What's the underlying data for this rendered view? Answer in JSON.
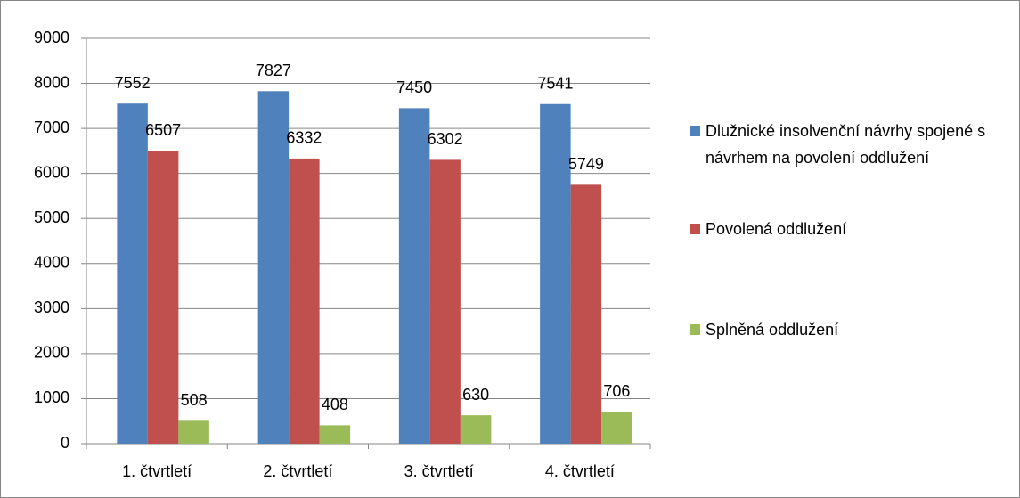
{
  "chart_data": {
    "type": "bar",
    "categories": [
      "1. čtvrtletí",
      "2. čtvrtletí",
      "3. čtvrtletí",
      "4. čtvrtletí"
    ],
    "series": [
      {
        "name": "Dlužnické insolvenční návrhy spojené s návrhem na povolení oddlužení",
        "color": "#4f81bd",
        "values": [
          7552,
          7827,
          7450,
          7541
        ]
      },
      {
        "name": "Povolená oddlužení",
        "color": "#c0504d",
        "values": [
          6507,
          6332,
          6302,
          5749
        ]
      },
      {
        "name": "Splněná oddlužení",
        "color": "#9bbb59",
        "values": [
          508,
          408,
          630,
          706
        ]
      }
    ],
    "ylim": [
      0,
      9000
    ],
    "yticks": [
      0,
      1000,
      2000,
      3000,
      4000,
      5000,
      6000,
      7000,
      8000,
      9000
    ],
    "grid": true,
    "legend": "right"
  }
}
